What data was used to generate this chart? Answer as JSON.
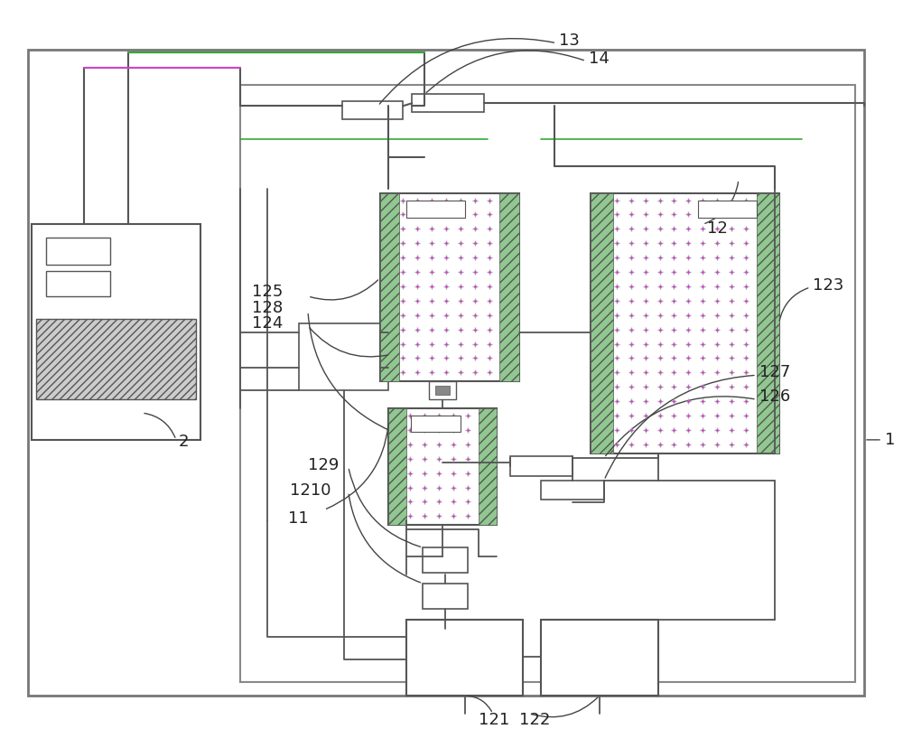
{
  "bg_color": "#ffffff",
  "line_color": "#555555",
  "fig_w": 10.0,
  "fig_h": 8.07,
  "dpi": 100
}
